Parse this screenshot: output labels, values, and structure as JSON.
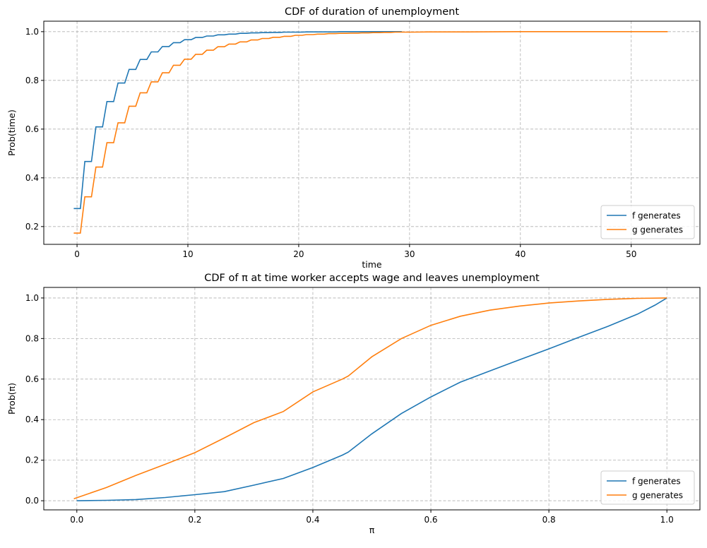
{
  "colors": {
    "f": "#1f77b4",
    "g": "#ff7f0e"
  },
  "chart_data": [
    {
      "type": "line",
      "title": "CDF of duration of unemployment",
      "xlabel": "time",
      "ylabel": "Prob(time)",
      "xlim": [
        -3,
        56.2
      ],
      "ylim": [
        0.127,
        1.043
      ],
      "xticks": [
        0,
        10,
        20,
        30,
        40,
        50
      ],
      "yticks": [
        0.2,
        0.4,
        0.6,
        0.8,
        1.0
      ],
      "xtick_labels": [
        "0",
        "10",
        "20",
        "30",
        "40",
        "50"
      ],
      "ytick_labels": [
        "0.2",
        "0.4",
        "0.6",
        "0.8",
        "1.0"
      ],
      "grid": true,
      "legend": "lower-right",
      "step": true,
      "series": [
        {
          "name": "f generates",
          "color_key": "f",
          "x": [
            0,
            1,
            2,
            3,
            4,
            5,
            6,
            7,
            8,
            9,
            10,
            11,
            12,
            13,
            14,
            15,
            16,
            17,
            18,
            19,
            20,
            21,
            22,
            23,
            24,
            25,
            26,
            27,
            28,
            29
          ],
          "y": [
            0.274,
            0.467,
            0.609,
            0.713,
            0.789,
            0.845,
            0.886,
            0.917,
            0.939,
            0.955,
            0.967,
            0.976,
            0.982,
            0.987,
            0.99,
            0.993,
            0.995,
            0.996,
            0.997,
            0.998,
            0.998,
            0.999,
            0.999,
            0.999,
            1.0,
            1.0,
            1.0,
            1.0,
            1.0,
            1.0
          ]
        },
        {
          "name": "g generates",
          "color_key": "g",
          "x": [
            0,
            1,
            2,
            3,
            4,
            5,
            6,
            7,
            8,
            9,
            10,
            11,
            12,
            13,
            14,
            15,
            16,
            17,
            18,
            19,
            20,
            21,
            22,
            23,
            24,
            25,
            26,
            27,
            28,
            29,
            30,
            32,
            35,
            40,
            45,
            50,
            53
          ],
          "y": [
            0.173,
            0.322,
            0.444,
            0.544,
            0.626,
            0.694,
            0.749,
            0.794,
            0.831,
            0.862,
            0.887,
            0.907,
            0.924,
            0.938,
            0.949,
            0.958,
            0.966,
            0.972,
            0.977,
            0.981,
            0.985,
            0.988,
            0.99,
            0.992,
            0.993,
            0.994,
            0.995,
            0.996,
            0.997,
            0.998,
            0.998,
            0.999,
            0.999,
            1.0,
            1.0,
            1.0,
            1.0
          ]
        }
      ]
    },
    {
      "type": "line",
      "title": "CDF of π at time worker accepts wage and leaves unemployment",
      "xlabel": "π",
      "ylabel": "Prob(π)",
      "xlim": [
        -0.056,
        1.056
      ],
      "ylim": [
        -0.045,
        1.052
      ],
      "xticks": [
        0,
        0.2,
        0.4,
        0.6,
        0.8,
        1.0
      ],
      "yticks": [
        0,
        0.2,
        0.4,
        0.6,
        0.8,
        1.0
      ],
      "xtick_labels": [
        "0.0",
        "0.2",
        "0.4",
        "0.6",
        "0.8",
        "1.0"
      ],
      "ytick_labels": [
        "0.0",
        "0.2",
        "0.4",
        "0.6",
        "0.8",
        "1.0"
      ],
      "grid": true,
      "legend": "lower-right",
      "step": false,
      "series": [
        {
          "name": "f generates",
          "color_key": "f",
          "x": [
            0,
            0.05,
            0.1,
            0.15,
            0.2,
            0.25,
            0.3,
            0.35,
            0.4,
            0.45,
            0.46,
            0.5,
            0.55,
            0.6,
            0.65,
            0.7,
            0.75,
            0.8,
            0.85,
            0.9,
            0.95,
            0.98,
            1.0
          ],
          "y": [
            0,
            0.002,
            0.006,
            0.016,
            0.03,
            0.045,
            0.077,
            0.11,
            0.164,
            0.225,
            0.24,
            0.33,
            0.43,
            0.512,
            0.585,
            0.64,
            0.695,
            0.749,
            0.805,
            0.86,
            0.92,
            0.965,
            1.0
          ]
        },
        {
          "name": "g generates",
          "color_key": "g",
          "x": [
            -0.005,
            0.05,
            0.1,
            0.15,
            0.2,
            0.25,
            0.3,
            0.35,
            0.4,
            0.45,
            0.46,
            0.5,
            0.55,
            0.6,
            0.65,
            0.7,
            0.75,
            0.8,
            0.85,
            0.9,
            0.95,
            1.0
          ],
          "y": [
            0.01,
            0.065,
            0.125,
            0.18,
            0.237,
            0.31,
            0.385,
            0.44,
            0.537,
            0.6,
            0.615,
            0.71,
            0.8,
            0.865,
            0.91,
            0.94,
            0.96,
            0.975,
            0.985,
            0.993,
            0.998,
            1.0
          ]
        }
      ]
    }
  ]
}
